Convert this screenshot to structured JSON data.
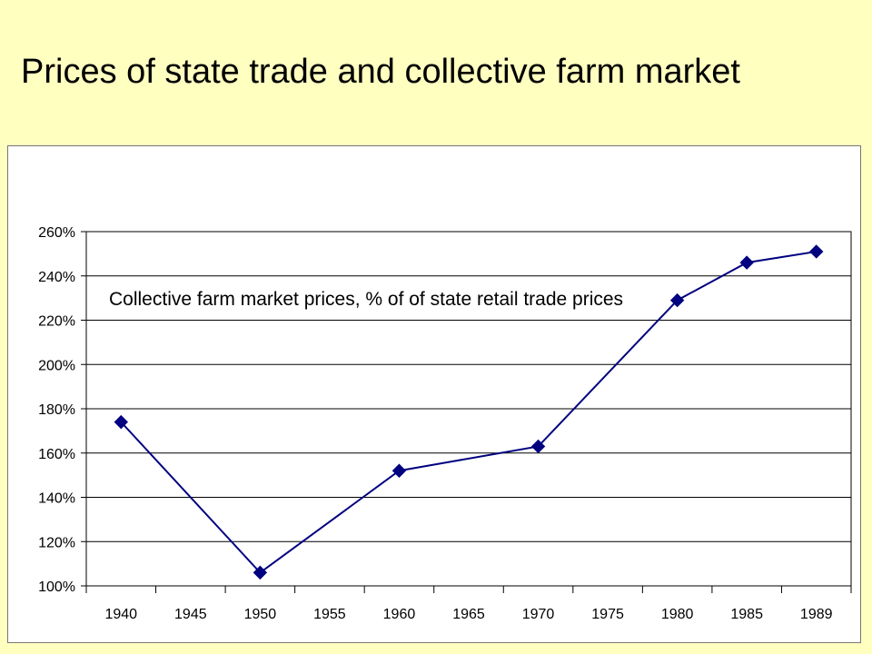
{
  "slide": {
    "title": "Prices of state trade and collective farm market"
  },
  "colors": {
    "background": "#FFFFC0",
    "series": "#00007F",
    "marker": "#000080"
  },
  "chart_data": {
    "type": "line",
    "title": "",
    "xlabel": "",
    "ylabel": "",
    "categories": [
      "1940",
      "1945",
      "1950",
      "1955",
      "1960",
      "1965",
      "1970",
      "1975",
      "1980",
      "1985",
      "1989"
    ],
    "series": [
      {
        "values": [
          174,
          null,
          106,
          null,
          152,
          null,
          163,
          null,
          229,
          246,
          251
        ]
      }
    ],
    "annotation": "Collective farm market prices, % of of state retail trade prices",
    "ylim": [
      100,
      260
    ],
    "yticks": [
      100,
      120,
      140,
      160,
      180,
      200,
      220,
      240,
      260
    ],
    "ytick_labels": [
      "100%",
      "120%",
      "140%",
      "160%",
      "180%",
      "200%",
      "220%",
      "240%",
      "260%"
    ],
    "grid": true,
    "legend": "none",
    "marker": "diamond"
  }
}
